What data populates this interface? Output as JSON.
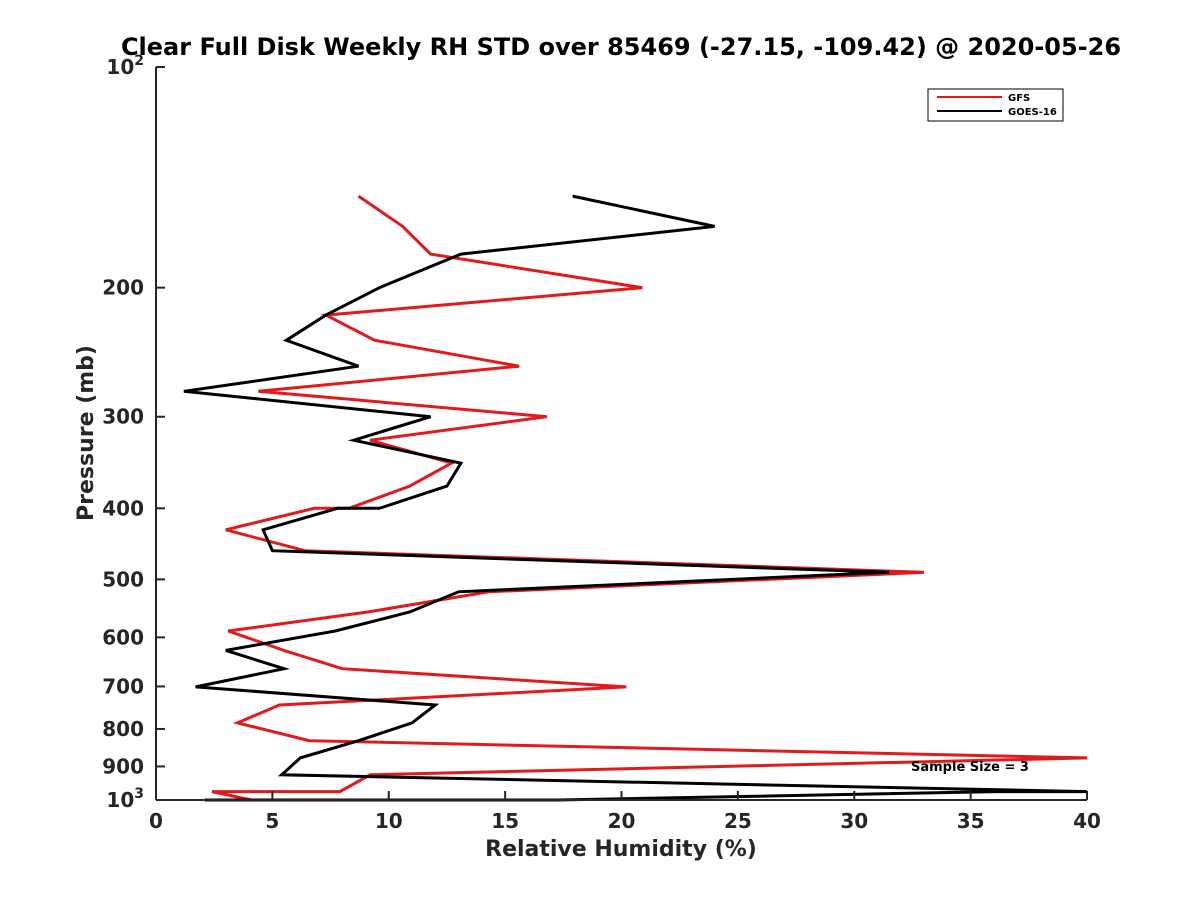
{
  "chart_data": {
    "type": "line",
    "title": "Clear Full Disk Weekly RH STD over 85469 (-27.15, -109.42) @ 2020-05-26",
    "xlabel": "Relative Humidity (%)",
    "ylabel": "Pressure (mb)",
    "xlim": [
      0,
      40
    ],
    "ylim": [
      100,
      1000
    ],
    "y_scale": "log",
    "y_reversed": true,
    "grid": false,
    "legend_position": "top-right",
    "x_ticks": [
      {
        "value": 0,
        "label": "0"
      },
      {
        "value": 5,
        "label": "5"
      },
      {
        "value": 10,
        "label": "10"
      },
      {
        "value": 15,
        "label": "15"
      },
      {
        "value": 20,
        "label": "20"
      },
      {
        "value": 25,
        "label": "25"
      },
      {
        "value": 30,
        "label": "30"
      },
      {
        "value": 35,
        "label": "35"
      },
      {
        "value": 40,
        "label": "40"
      }
    ],
    "y_ticks": [
      {
        "value": 100,
        "label": "10",
        "sup": "2"
      },
      {
        "value": 200,
        "label": "200",
        "sup": ""
      },
      {
        "value": 300,
        "label": "300",
        "sup": ""
      },
      {
        "value": 400,
        "label": "400",
        "sup": ""
      },
      {
        "value": 500,
        "label": "500",
        "sup": ""
      },
      {
        "value": 600,
        "label": "600",
        "sup": ""
      },
      {
        "value": 700,
        "label": "700",
        "sup": ""
      },
      {
        "value": 800,
        "label": "800",
        "sup": ""
      },
      {
        "value": 900,
        "label": "900",
        "sup": ""
      },
      {
        "value": 1000,
        "label": "10",
        "sup": "3"
      }
    ],
    "series": [
      {
        "name": "GFS",
        "color": "#e31a1c",
        "points": [
          [
            8.7,
            150
          ],
          [
            10.6,
            165
          ],
          [
            11.8,
            180
          ],
          [
            20.9,
            200
          ],
          [
            7.3,
            218
          ],
          [
            9.4,
            236
          ],
          [
            15.6,
            256
          ],
          [
            4.4,
            277
          ],
          [
            16.8,
            300
          ],
          [
            9.2,
            323
          ],
          [
            12.7,
            347
          ],
          [
            10.9,
            373
          ],
          [
            8.3,
            400
          ],
          [
            6.8,
            400
          ],
          [
            3.0,
            428
          ],
          [
            6.4,
            457
          ],
          [
            33.0,
            489
          ],
          [
            14.3,
            520
          ],
          [
            9.1,
            554
          ],
          [
            3.1,
            588
          ],
          [
            5.5,
            625
          ],
          [
            8.0,
            662
          ],
          [
            20.2,
            701
          ],
          [
            5.3,
            742
          ],
          [
            3.5,
            785
          ],
          [
            6.6,
            830
          ],
          [
            40.0,
            876
          ],
          [
            9.2,
            924
          ],
          [
            7.9,
            974
          ],
          [
            2.4,
            974
          ],
          [
            4.1,
            1000
          ],
          [
            2.2,
            1000
          ],
          [
            7.2,
            1000
          ],
          [
            9.5,
            1000
          ],
          [
            7.2,
            1000
          ],
          [
            8.5,
            1000
          ]
        ]
      },
      {
        "name": "GOES-16",
        "color": "#000000",
        "points": [
          [
            17.9,
            150
          ],
          [
            24.0,
            165
          ],
          [
            13.1,
            180
          ],
          [
            9.6,
            200
          ],
          [
            7.3,
            218
          ],
          [
            5.6,
            236
          ],
          [
            8.7,
            256
          ],
          [
            1.2,
            277
          ],
          [
            11.8,
            300
          ],
          [
            8.5,
            323
          ],
          [
            13.1,
            347
          ],
          [
            12.5,
            373
          ],
          [
            9.6,
            400
          ],
          [
            7.8,
            400
          ],
          [
            4.6,
            428
          ],
          [
            5.0,
            457
          ],
          [
            31.5,
            489
          ],
          [
            13.0,
            520
          ],
          [
            10.9,
            554
          ],
          [
            7.7,
            588
          ],
          [
            3.0,
            625
          ],
          [
            5.5,
            662
          ],
          [
            1.7,
            701
          ],
          [
            12.0,
            742
          ],
          [
            11.0,
            785
          ],
          [
            8.7,
            830
          ],
          [
            6.2,
            876
          ],
          [
            5.4,
            924
          ],
          [
            40.0,
            974
          ],
          [
            36.1,
            974
          ],
          [
            17.3,
            1000
          ],
          [
            6.0,
            1000
          ],
          [
            3.0,
            1000
          ],
          [
            2.1,
            1000
          ],
          [
            11.1,
            1000
          ],
          [
            12.8,
            1000
          ],
          [
            11.3,
            1000
          ],
          [
            8.2,
            1000
          ],
          [
            10.9,
            1000
          ]
        ]
      }
    ],
    "annotation": "Sample Size = 3"
  }
}
